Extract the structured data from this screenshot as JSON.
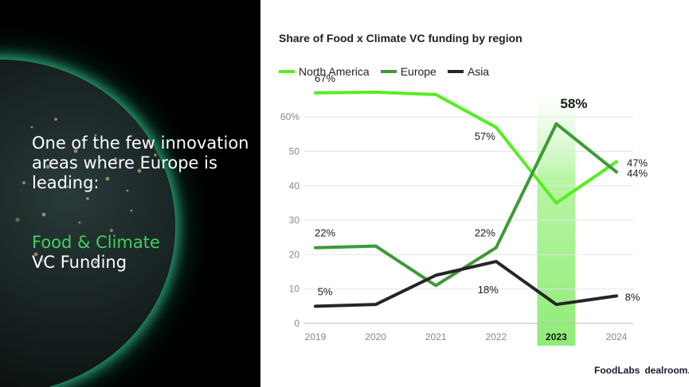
{
  "headline": {
    "text": "One of the few innovation areas where Europe is leading:",
    "sub_green": "Food & Climate",
    "sub_white": "VC Funding"
  },
  "colors": {
    "north_america": "#55ee22",
    "europe": "#3d9a35",
    "asia": "#262626",
    "highlight": "#b8f5a4",
    "sub_green": "#3fd15a"
  },
  "brand": {
    "foodlabs": "FoodLabs",
    "dealroom": "dealroom.co"
  },
  "chart_data": {
    "type": "line",
    "title": "Share of Food x Climate VC funding by region",
    "x": [
      "2019",
      "2020",
      "2021",
      "2022",
      "2023",
      "2024"
    ],
    "highlight_category": "2023",
    "y_ticks": [
      "0",
      "10",
      "20",
      "30",
      "40",
      "50",
      "60%"
    ],
    "ylim": [
      0,
      70
    ],
    "grid": true,
    "legend_position": "top-left",
    "series": [
      {
        "name": "North America",
        "values": [
          67,
          67.2,
          66.5,
          57,
          35,
          47
        ]
      },
      {
        "name": "Europe",
        "values": [
          22,
          22.5,
          11,
          22,
          58,
          44
        ]
      },
      {
        "name": "Asia",
        "values": [
          5,
          5.5,
          14,
          18,
          5.5,
          8
        ]
      }
    ],
    "data_labels": [
      {
        "series": "North America",
        "x": "2019",
        "text": "67%"
      },
      {
        "series": "North America",
        "x": "2022",
        "text": "57%"
      },
      {
        "series": "North America",
        "x": "2024",
        "text": "47%"
      },
      {
        "series": "Europe",
        "x": "2019",
        "text": "22%"
      },
      {
        "series": "Europe",
        "x": "2022",
        "text": "22%"
      },
      {
        "series": "Europe",
        "x": "2023",
        "text": "58%"
      },
      {
        "series": "Europe",
        "x": "2024",
        "text": "44%"
      },
      {
        "series": "Asia",
        "x": "2019",
        "text": "5%"
      },
      {
        "series": "Asia",
        "x": "2022",
        "text": "18%"
      },
      {
        "series": "Asia",
        "x": "2024",
        "text": "8%"
      }
    ]
  }
}
